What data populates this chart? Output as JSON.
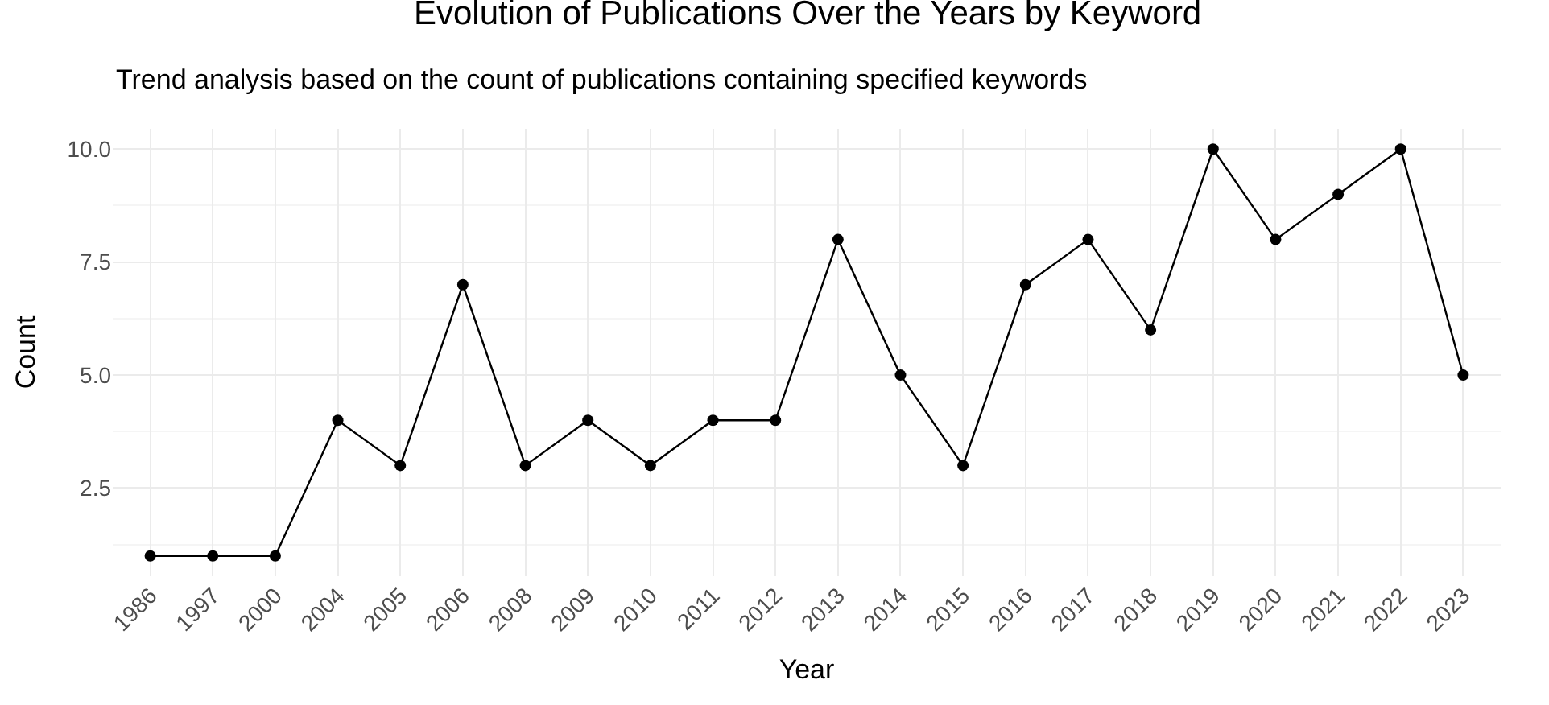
{
  "chart_data": {
    "type": "line",
    "title": "Evolution of Publications Over the Years by Keyword",
    "subtitle": "Trend analysis based on the count of publications containing specified keywords",
    "xlabel": "Year",
    "ylabel": "Count",
    "categories": [
      "1986",
      "1997",
      "2000",
      "2004",
      "2005",
      "2006",
      "2008",
      "2009",
      "2010",
      "2011",
      "2012",
      "2013",
      "2014",
      "2015",
      "2016",
      "2017",
      "2018",
      "2019",
      "2020",
      "2021",
      "2022",
      "2023"
    ],
    "series": [
      {
        "color": "#000000",
        "values": [
          1,
          1,
          1,
          4,
          3,
          7,
          3,
          4,
          3,
          4,
          4,
          8,
          5,
          3,
          7,
          8,
          6,
          10,
          8,
          9,
          10,
          5
        ]
      }
    ],
    "ylim": [
      0.55,
      10.45
    ],
    "yticks": [
      {
        "value": 2.5,
        "label": "2.5"
      },
      {
        "value": 5,
        "label": "5.0"
      },
      {
        "value": 7.5,
        "label": "7.5"
      },
      {
        "value": 10,
        "label": "10.0"
      }
    ],
    "grid": true,
    "legend": false,
    "marker": "circle",
    "line_style": "solid"
  }
}
